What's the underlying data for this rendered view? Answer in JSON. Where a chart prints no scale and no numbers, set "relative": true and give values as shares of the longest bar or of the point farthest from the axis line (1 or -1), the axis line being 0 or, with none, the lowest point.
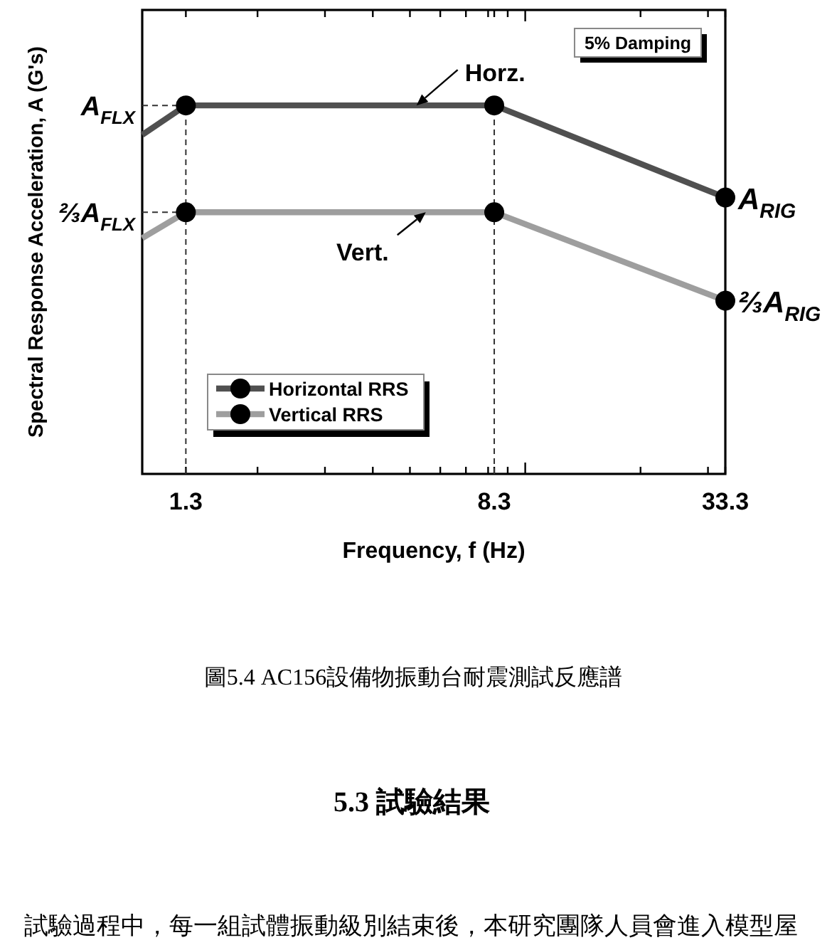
{
  "chart_data": {
    "type": "line",
    "xlabel": "Frequency, f (Hz)",
    "ylabel": "Spectral Response Acceleration, A (G's)",
    "log": "x",
    "xlim": [
      1,
      33.3
    ],
    "xticks": [
      1.3,
      {
        "value": 2,
        "label": null
      },
      {
        "value": 3,
        "label": null
      },
      {
        "value": 4,
        "label": null
      },
      {
        "value": 5,
        "label": null
      },
      {
        "value": 6,
        "label": null
      },
      {
        "value": 7,
        "label": null
      },
      {
        "value": 8,
        "label": null
      },
      8.3,
      {
        "value": 9,
        "label": null
      },
      {
        "value": 10,
        "label": null
      },
      {
        "value": 20,
        "label": null
      },
      {
        "value": 30,
        "label": null
      },
      33.3
    ],
    "relative": true,
    "legend": "bottom left",
    "series": [
      {
        "x": [
          1,
          1.3
        ],
        "values": [
          0.92,
          1
        ],
        "color": "#505050"
      },
      {
        "x": [
          1,
          1.3
        ],
        "values": [
          0.64,
          0.71
        ],
        "color": "#9e9e9e"
      },
      {
        "name": "Horizontal RRS",
        "x": [
          1.3,
          8.3,
          33.3
        ],
        "values": [
          1,
          1,
          0.75
        ],
        "color": "#505050",
        "marker": "circle"
      },
      {
        "name": "Vertical RRS",
        "x": [
          1.3,
          8.3,
          33.3
        ],
        "values": [
          0.71,
          0.71,
          0.47
        ],
        "color": "#9e9e9e",
        "marker": "circle"
      }
    ],
    "ref_lines": [
      {
        "axis": "y",
        "value": 1,
        "label": "A$_{FLX}$",
        "line_style": "dashed",
        "color": "#333333"
      },
      {
        "axis": "y",
        "value": 0.71,
        "label": "⅔A$_{FLX}$",
        "line_style": "dashed",
        "color": "#333333"
      },
      {
        "axis": "x",
        "value": 1.3,
        "line_style": "dashed",
        "color": "#333333"
      },
      {
        "axis": "x",
        "value": 8.3,
        "line_style": "dashed",
        "color": "#333333"
      }
    ],
    "annotations": [
      {
        "text": "Horz.",
        "x": 5.2,
        "y": 1
      },
      {
        "text": "Vert.",
        "x": 5.5,
        "y": 0.71
      },
      {
        "text": "A$_{RIG}$",
        "x": 33.3,
        "y": 0.75
      },
      {
        "text": "⅔A$_{RIG}$",
        "x": 33.3,
        "y": 0.47
      },
      "5% Damping",
      "圖5.4 AC156設備物振動台耐震測試反應譜",
      "5.3 試驗結果",
      "試驗過程中，每一組試體振動級別結束後，本研究團隊人員會進入模型屋"
    ]
  }
}
